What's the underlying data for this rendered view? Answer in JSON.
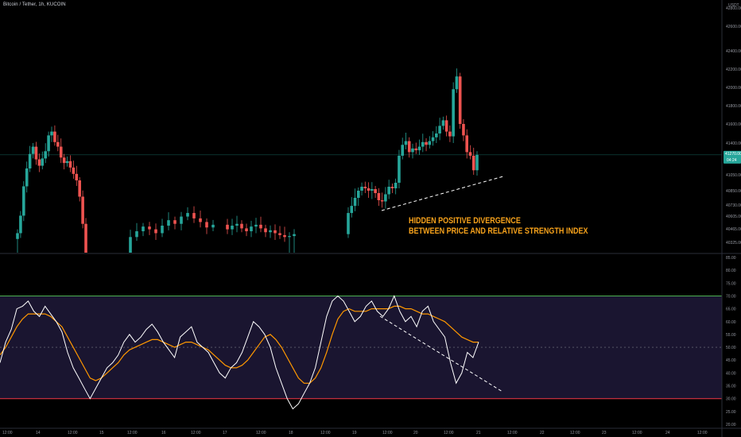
{
  "header": {
    "symbol_label": "Bitcoin / Tether, 1h, KUCOIN"
  },
  "annotation": {
    "line1": "HIDDEN POSITIVE DIVERGENCE",
    "line2": "BETWEEN PRICE AND RELATIVE STRENGTH INDEX"
  },
  "colors": {
    "background": "#000000",
    "bull": "#26a69a",
    "bear": "#ef5350",
    "rsi_line": "#ffffff",
    "rsi_ma": "#ff9800",
    "overbought_line": "#4caf50",
    "oversold_line": "#f23645",
    "annotation": "#f7a21b",
    "price_badge": "#26a69a"
  },
  "price_axis": {
    "currency": "USDT",
    "ticks": [
      "42800.00",
      "42600.00",
      "42400.00",
      "42200.00",
      "42000.00",
      "41800.00",
      "41600.00",
      "41400.00",
      "41050.00",
      "40850.00",
      "40730.00",
      "40605.00",
      "40465.00",
      "40325.00"
    ],
    "current_price": "41270.00",
    "countdown": "04:24"
  },
  "rsi_axis": {
    "ticks": [
      "85.00",
      "80.00",
      "75.00",
      "70.00",
      "65.00",
      "60.00",
      "55.00",
      "50.00",
      "45.00",
      "40.00",
      "35.00",
      "30.00",
      "25.00",
      "20.00"
    ],
    "upper_band": 70,
    "lower_band": 30,
    "middle": 50
  },
  "time_axis": {
    "labels": [
      "12:00",
      "14",
      "12:00",
      "15",
      "12:00",
      "16",
      "12:00",
      "17",
      "12:00",
      "18",
      "12:00",
      "19",
      "12:00",
      "20",
      "12:00",
      "21",
      "12:00",
      "22",
      "12:00",
      "23",
      "12:00",
      "24",
      "12:00"
    ]
  },
  "chart_data": {
    "type": "candlestick",
    "title": "Bitcoin / Tether, 1h, KUCOIN",
    "price_ylim": [
      40325,
      42800
    ],
    "rsi_ylim": [
      20,
      85
    ],
    "price_gap_segments": [
      {
        "start_index": 0,
        "end_index": 22
      },
      {
        "start_index": 37,
        "end_index": 52
      },
      {
        "start_index": 58,
        "end_index": 75
      },
      {
        "start_index": 93,
        "end_index": 128
      }
    ],
    "close_series": [
      40420,
      40610,
      40905,
      41120,
      41280,
      41360,
      41220,
      41150,
      41230,
      41310,
      41480,
      41520,
      41410,
      41360,
      41240,
      41180,
      41200,
      41130,
      41060,
      40980,
      40800,
      40520,
      40250,
      40380,
      40440,
      40490,
      40460,
      40420,
      40500,
      40560,
      40520,
      40600,
      40640,
      40580,
      40540,
      40480,
      40510,
      40460,
      40500,
      40520,
      40470,
      40440,
      40490,
      40510,
      40470,
      40430,
      40450,
      40420,
      40400,
      40380,
      40390,
      40410,
      40640,
      40720,
      40790,
      40850,
      40900,
      40880,
      40850,
      40870,
      40830,
      40770,
      40760,
      40820,
      40900,
      40880,
      40950,
      41260,
      41380,
      41420,
      41300,
      41340,
      41320,
      41360,
      41410,
      41380,
      41420,
      41460,
      41500,
      41580,
      41640,
      41520,
      41470,
      41980,
      42120,
      41600,
      41480,
      41300,
      41260,
      41100,
      41270
    ],
    "rsi": [
      44,
      52,
      57,
      65,
      66,
      68,
      64,
      62,
      66,
      63,
      60,
      56,
      48,
      42,
      38,
      34,
      30,
      34,
      38,
      42,
      44,
      47,
      52,
      55,
      52,
      54,
      57,
      59,
      56,
      52,
      49,
      46,
      54,
      56,
      58,
      52,
      50,
      48,
      44,
      40,
      38,
      42,
      44,
      48,
      54,
      60,
      58,
      55,
      50,
      42,
      36,
      30,
      26,
      28,
      32,
      36,
      42,
      52,
      62,
      68,
      70,
      68,
      64,
      60,
      62,
      66,
      68,
      64,
      62,
      65,
      70,
      64,
      60,
      62,
      58,
      64,
      66,
      60,
      57,
      54,
      44,
      36,
      40,
      48,
      46,
      52
    ],
    "rsi_ma": [
      47,
      50,
      54,
      58,
      61,
      63,
      63,
      63,
      63,
      62,
      60,
      58,
      54,
      50,
      46,
      42,
      38,
      37,
      38,
      40,
      42,
      44,
      47,
      49,
      50,
      51,
      52,
      53,
      53,
      52,
      51,
      50,
      51,
      52,
      52,
      51,
      50,
      49,
      47,
      45,
      43,
      42,
      42,
      43,
      45,
      48,
      51,
      54,
      55,
      53,
      50,
      46,
      42,
      38,
      36,
      36,
      38,
      42,
      48,
      55,
      61,
      64,
      65,
      64,
      64,
      64,
      65,
      65,
      65,
      65,
      66,
      66,
      65,
      65,
      64,
      63,
      63,
      62,
      61,
      60,
      58,
      56,
      54,
      53,
      52,
      52
    ],
    "price_trendline": {
      "from": {
        "index": 68,
        "price": 40620
      },
      "to": {
        "index": 93,
        "price": 41060
      }
    },
    "rsi_trendline": {
      "from": {
        "index": 68,
        "rsi": 60
      },
      "to": {
        "index": 94,
        "rsi": 33
      }
    },
    "annotation": "HIDDEN POSITIVE DIVERGENCE BETWEEN PRICE AND RELATIVE STRENGTH INDEX"
  }
}
